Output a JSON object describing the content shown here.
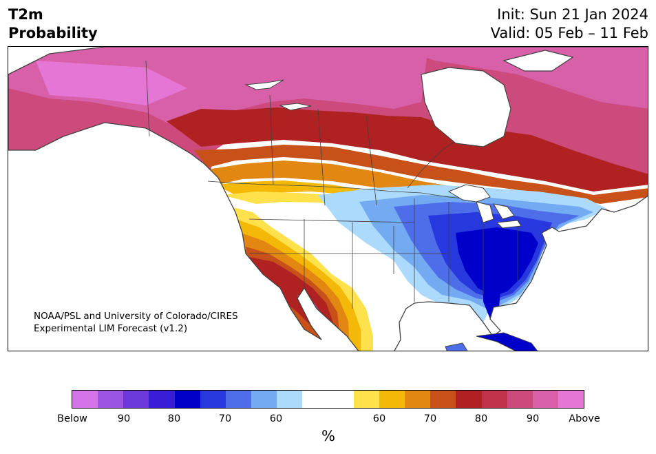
{
  "title": {
    "variable": "T2m",
    "type": "Probability",
    "init": "Init: Sun 21 Jan 2024",
    "valid": "Valid: 05 Feb – 11 Feb"
  },
  "attribution": {
    "line1": "NOAA/PSL and University of Colorado/CIRES",
    "line2": "Experimental LIM Forecast (v1.2)"
  },
  "colorbar": {
    "unit": "%",
    "colors": [
      "#d474e9",
      "#9c54e2",
      "#6c38da",
      "#3a1dd6",
      "#0000cb",
      "#2638de",
      "#4e6ee9",
      "#74aaf2",
      "#acdafc",
      "#ffffff",
      "#ffffff",
      "#ffe14c",
      "#f4b908",
      "#e28711",
      "#c8511a",
      "#b02222",
      "#c0324a",
      "#cc4a7c",
      "#d860a8",
      "#e676d6"
    ],
    "tick_labels": [
      "Below",
      "90",
      "80",
      "70",
      "60",
      "60",
      "70",
      "80",
      "90",
      "Above"
    ]
  },
  "legend_colors": {
    "below_strong": "#0000cb",
    "below_weak": "#acdafc",
    "above_weak": "#ffe14c",
    "above_strong": "#d860a8",
    "coast": "#404040",
    "land": "#ffffff"
  }
}
